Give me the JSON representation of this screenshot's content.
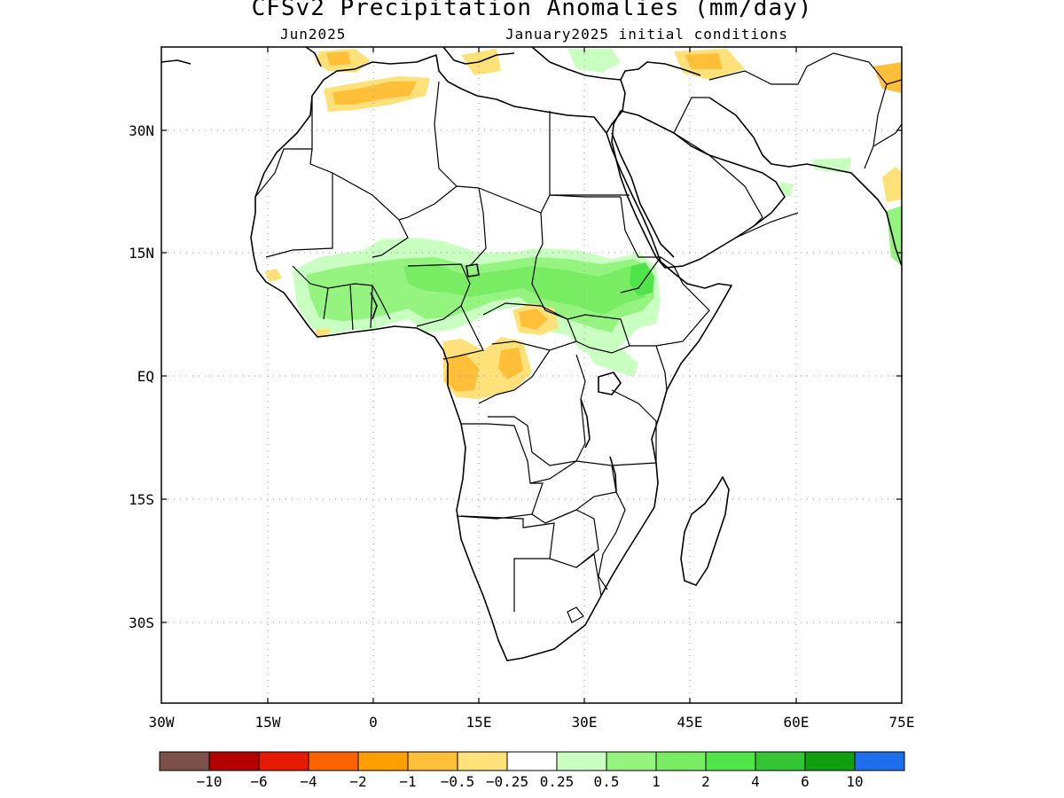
{
  "title": "CFSv2 Precipitation Anomalies (mm/day)",
  "subtitle_left": "Jun2025",
  "subtitle_right": "January2025 initial conditions",
  "map": {
    "lon_range": [
      -30,
      75
    ],
    "lat_range": [
      -46.5,
      46.5
    ],
    "x_ticks": [
      "30W",
      "15W",
      "0",
      "15E",
      "30E",
      "45E",
      "60E",
      "75E"
    ],
    "y_ticks": [
      "30N",
      "15N",
      "EQ",
      "15S",
      "30S"
    ],
    "gridlines": true
  },
  "colorbar": {
    "colors": [
      "#7b5149",
      "#b50000",
      "#e41b00",
      "#ff6300",
      "#ff9f00",
      "#ffbf39",
      "#ffe17a",
      "#ffffff",
      "#c9ffc1",
      "#95f47f",
      "#78ec63",
      "#4fe54a",
      "#33c533",
      "#0fa00f",
      "#1e6eeb"
    ],
    "labels": [
      "−10",
      "−6",
      "−4",
      "−2",
      "−1",
      "−0.5",
      "−0.25",
      "0.25",
      "0.5",
      "1",
      "2",
      "4",
      "6",
      "10"
    ]
  }
}
